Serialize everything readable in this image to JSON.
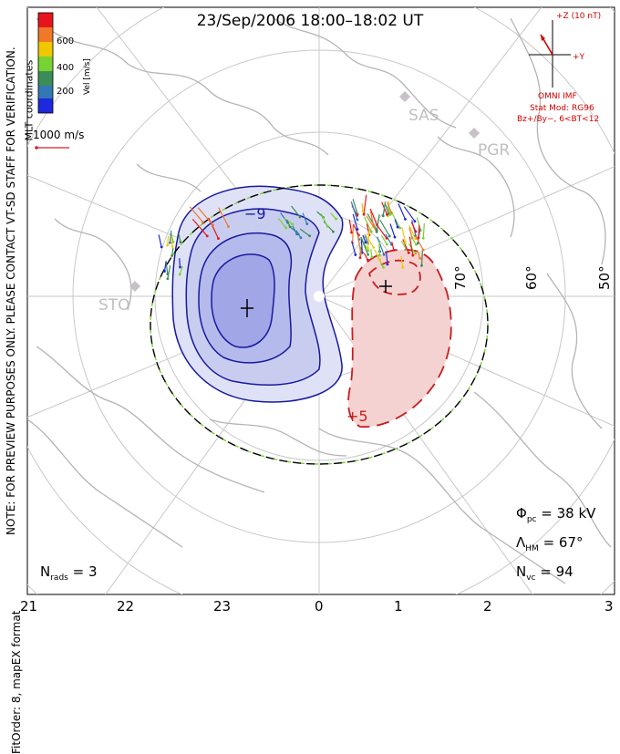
{
  "header": {
    "title": "23/Sep/2006 18:00–18:02 UT"
  },
  "sidebar": {
    "note": "NOTE: FOR PREVIEW PURPOSES ONLY. PLEASE CONTACT VT-SD STAFF FOR VERIFICATION.",
    "fit_order": "FitOrder: 8, mapEX format",
    "coords": "MLT coordinates"
  },
  "colorbar": {
    "label": "Vel [m/s]",
    "ticks": [
      "600",
      "400",
      "200"
    ],
    "colors": [
      "#e8141c",
      "#f07828",
      "#f0c800",
      "#78d232",
      "#3c8c5a",
      "#3278b4",
      "#1e28dc"
    ]
  },
  "scale_vector": {
    "label": "1000 m/s",
    "color": "#d21e28"
  },
  "imf": {
    "bz_label": "+Z (10 nT)",
    "by_label": "+Y",
    "source": "OMNI IMF",
    "model": "Stat Mod: RG96",
    "condition": "Bz+/By−, 6<BT<12",
    "color": "#d20000"
  },
  "stations": [
    {
      "name": "SAS"
    },
    {
      "name": "PGR"
    },
    {
      "name": "STO"
    }
  ],
  "latitude_labels": [
    "70°",
    "60°",
    "50°"
  ],
  "contour_labels": {
    "negative": "−9",
    "positive": "+5"
  },
  "stats": {
    "phi_symbol": "Φ",
    "phi_sub": "pc",
    "phi_value": " = 38 kV",
    "lambda_symbol": "Λ",
    "lambda_sub": "HM",
    "lambda_value": " = 67°",
    "nvc_symbol": "N",
    "nvc_sub": "vc",
    "nvc_value": " = 94",
    "nrads_symbol": "N",
    "nrads_sub": "rads",
    "nrads_value": " = 3"
  },
  "mlt_axis": [
    "21",
    "22",
    "23",
    "0",
    "1",
    "2",
    "3"
  ],
  "palette": {
    "negative_fill": "#c8cdf0",
    "negative_line": "#1a1aa0",
    "positive_fill": "#f5d2d2",
    "positive_line": "#c81e1e",
    "grid": "#c8c8c8",
    "land": "#b4b4b4"
  }
}
